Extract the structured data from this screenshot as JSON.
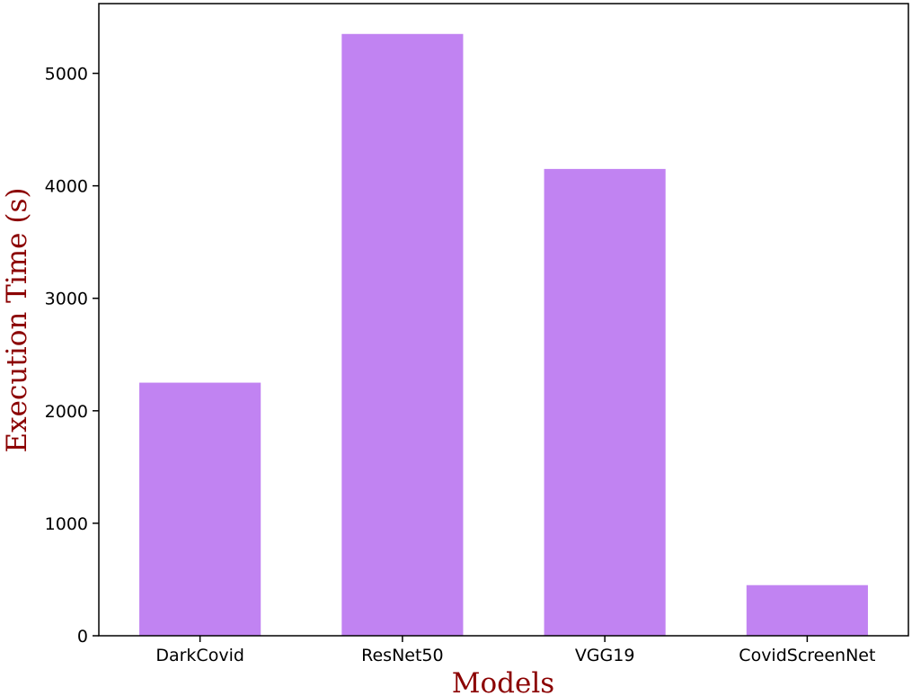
{
  "chart_data": {
    "type": "bar",
    "title": "",
    "categories": [
      "DarkCovid",
      "ResNet50",
      "VGG19",
      "CovidScreenNet"
    ],
    "values": [
      2250,
      5350,
      4150,
      450
    ],
    "xlabel": "Models",
    "ylabel": "Execution Time (s)",
    "ylim": [
      0,
      5620
    ],
    "yticks": [
      0,
      1000,
      2000,
      3000,
      4000,
      5000
    ],
    "ytick_labels": [
      "0",
      "1000",
      "2000",
      "3000",
      "4000",
      "5000"
    ],
    "grid": false,
    "legend": "none",
    "bar_color": "#c183f2",
    "label_color": "#8b0000"
  }
}
